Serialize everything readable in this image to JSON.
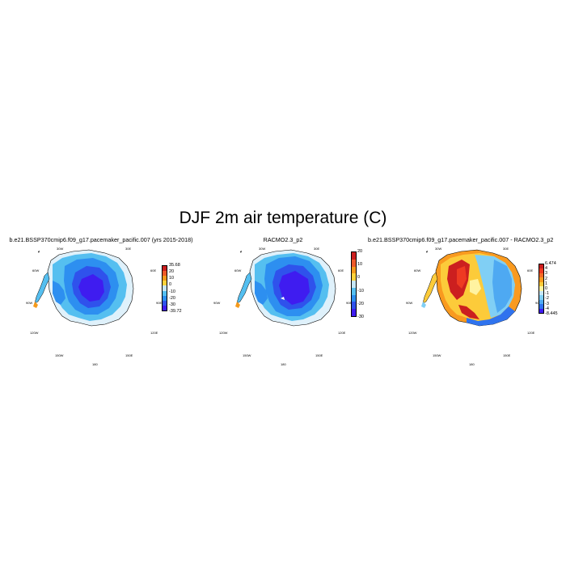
{
  "title": "DJF 2m air temperature (C)",
  "panels": [
    {
      "title": "b.e21.BSSP370cmip6.f09_g17.pacemaker_pacific.007 (yrs 2015-2018)",
      "lon_labels": {
        "w30": "30W",
        "e30": "30E",
        "w60": "60W",
        "e60": "60E",
        "w90": "90W",
        "e90": "90E",
        "w120": "120W",
        "e120": "120E",
        "w150": "150W",
        "e150": "150E",
        "d180": "180"
      },
      "colorbar": {
        "labels": [
          "35.68",
          "20",
          "10",
          "0",
          "-10",
          "-20",
          "-30",
          "-39.72"
        ],
        "colors": [
          "#cc1f1f",
          "#ee5a2a",
          "#f59a1c",
          "#ffd23a",
          "#c6e6f5",
          "#55bff0",
          "#2d8ff0",
          "#2f52ec",
          "#3f1cf0"
        ]
      }
    },
    {
      "title": "RACMO2.3_p2",
      "lon_labels": {
        "w30": "30W",
        "e30": "30E",
        "w60": "60W",
        "e60": "60E",
        "w90": "90W",
        "e90": "90E",
        "w120": "120W",
        "e120": "120E",
        "w150": "150W",
        "e150": "150E",
        "d180": "180"
      },
      "colorbar": {
        "labels": [
          "20",
          "10",
          "0",
          "-10",
          "-20",
          "-30"
        ],
        "colors": [
          "#cc1f1f",
          "#ee5a2a",
          "#f59a1c",
          "#ffd23a",
          "#c6e6f5",
          "#55bff0",
          "#2d8ff0",
          "#2f52ec",
          "#3f1cf0"
        ]
      }
    },
    {
      "title": "b.e21.BSSP370cmip6.f09_g17.pacemaker_pacific.007 - RACMO2.3_p2",
      "lon_labels": {
        "w30": "30W",
        "e30": "30E",
        "w60": "60W",
        "e60": "60E",
        "w90": "90W",
        "e90": "90E",
        "w120": "120W",
        "e120": "120E",
        "w150": "150W",
        "e150": "150E",
        "d180": "180"
      },
      "colorbar": {
        "labels": [
          "6.474",
          "4",
          "3",
          "2",
          "1",
          "0",
          "-1",
          "-2",
          "-3",
          "-4",
          "-8.445"
        ],
        "colors": [
          "#cc1f1f",
          "#ee3a22",
          "#f46b26",
          "#f99a1f",
          "#fccb3a",
          "#fff3a0",
          "#c6e6f5",
          "#80cff5",
          "#4ea9f2",
          "#2f73ee",
          "#3f1cf0"
        ]
      }
    }
  ]
}
